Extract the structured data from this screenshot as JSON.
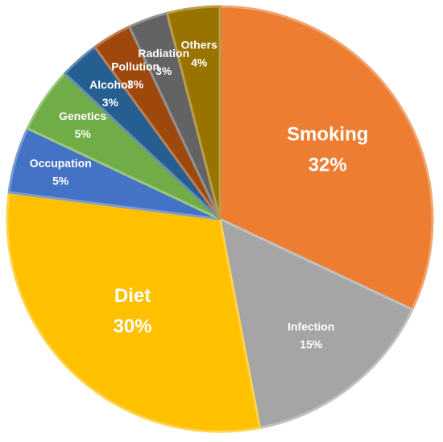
{
  "chart_data": {
    "type": "pie",
    "categories": [
      "Smoking",
      "Infection",
      "Diet",
      "Occupation",
      "Genetics",
      "Alcohol",
      "Pollution",
      "Radiation",
      "Others"
    ],
    "values": [
      32,
      15,
      30,
      5,
      5,
      3,
      3,
      3,
      4
    ],
    "value_labels": [
      "32%",
      "15%",
      "30%",
      "5%",
      "5%",
      "3%",
      "3%",
      "3%",
      "4%"
    ],
    "colors": [
      "#ED7D31",
      "#A5A5A5",
      "#FFC000",
      "#4472C4",
      "#70AD47",
      "#255E91",
      "#9E480E",
      "#636363",
      "#997300"
    ]
  }
}
